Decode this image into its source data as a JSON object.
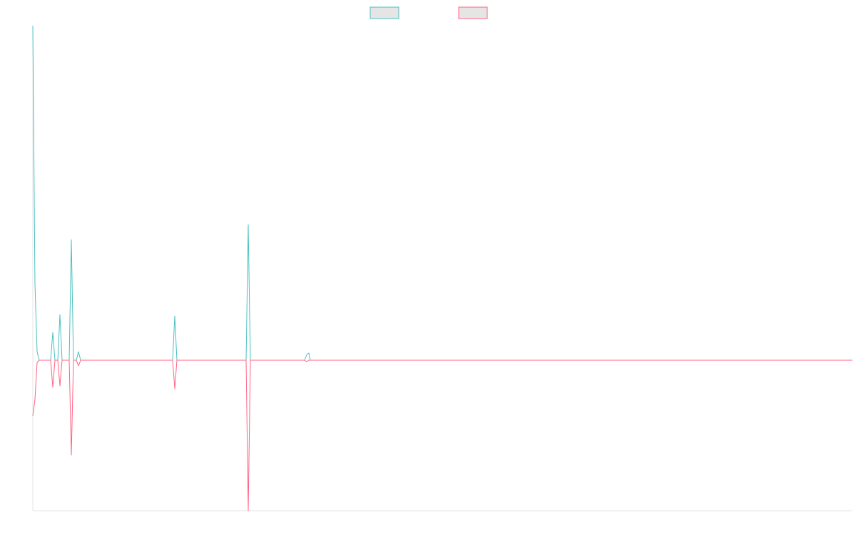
{
  "chart_data": {
    "type": "line",
    "x": [
      0,
      3,
      6,
      9,
      25,
      28,
      31,
      35,
      38,
      41,
      51,
      54,
      57,
      61,
      64,
      67,
      196,
      199,
      202,
      299,
      302,
      305,
      381,
      384,
      387,
      389,
      1149
    ],
    "xlim": [
      0,
      1149
    ],
    "ylim": [
      -211,
      469
    ],
    "legend": "top",
    "series": [
      {
        "color": "#4bc0c0",
        "values": [
          469,
          107,
          12,
          0,
          0,
          39,
          0,
          0,
          64,
          0,
          0,
          169,
          0,
          0,
          12,
          0,
          0,
          62,
          0,
          0,
          190,
          0,
          0,
          8,
          10,
          0,
          0
        ]
      },
      {
        "color": "#ff6384",
        "values": [
          -78,
          -55,
          -3,
          0,
          0,
          -38,
          0,
          0,
          -36,
          0,
          0,
          -133,
          0,
          0,
          -8,
          0,
          0,
          -40,
          0,
          0,
          -211,
          0,
          0,
          -2,
          0,
          0,
          0
        ]
      }
    ]
  }
}
